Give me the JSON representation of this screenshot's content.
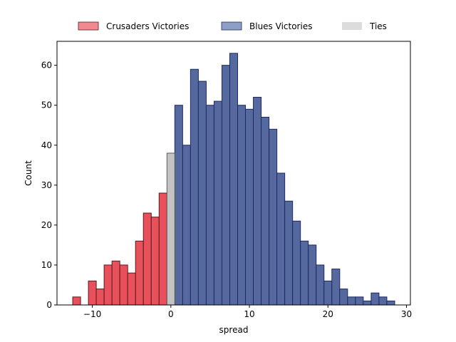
{
  "chart_data": {
    "type": "bar",
    "title": "",
    "xlabel": "spread",
    "ylabel": "Count",
    "xlim": [
      -14.5,
      30.5
    ],
    "ylim": [
      0,
      66
    ],
    "x_ticks": [
      -10,
      0,
      10,
      20,
      30
    ],
    "y_ticks": [
      0,
      10,
      20,
      30,
      40,
      50,
      60
    ],
    "grid": false,
    "legend_placement": "top-center, outside",
    "series": [
      {
        "name": "Crusaders Victories",
        "fill": "#e8505b",
        "legend_fill": "#f08a90",
        "edge": "#5a1a1e",
        "x": [
          -12,
          -11,
          -10,
          -9,
          -8,
          -7,
          -6,
          -5,
          -4,
          -3,
          -2,
          -1
        ],
        "values": [
          2,
          0,
          6,
          4,
          10,
          11,
          10,
          8,
          16,
          23,
          22,
          28
        ]
      },
      {
        "name": "Blues Victories",
        "fill": "#56699f",
        "legend_fill": "#8f9ec4",
        "edge": "#1c2a66",
        "x": [
          1,
          2,
          3,
          4,
          5,
          6,
          7,
          8,
          9,
          10,
          11,
          12,
          13,
          14,
          15,
          16,
          17,
          18,
          19,
          20,
          21,
          22,
          23,
          24,
          25,
          26,
          27,
          28
        ],
        "values": [
          50,
          40,
          59,
          56,
          50,
          51,
          60,
          63,
          50,
          49,
          52,
          47,
          44,
          33,
          26,
          21,
          16,
          15,
          10,
          6,
          9,
          4,
          2,
          2,
          1,
          3,
          2,
          1
        ]
      },
      {
        "name": "Ties",
        "fill": "#c3c3c3",
        "legend_fill": "#dcdcdc",
        "edge": "#5a5a5a",
        "x": [
          0
        ],
        "values": [
          38
        ]
      }
    ]
  }
}
